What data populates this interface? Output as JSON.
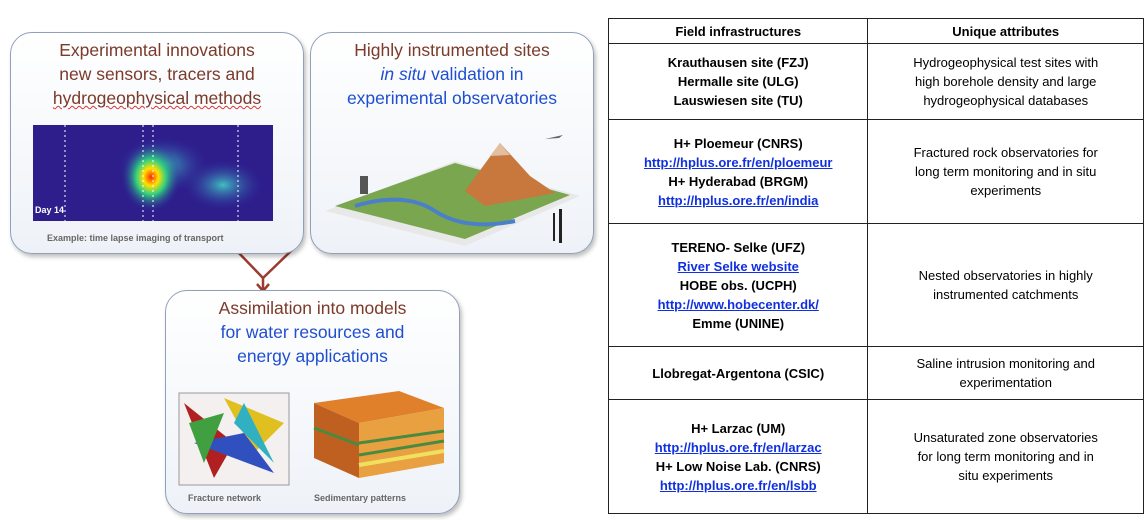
{
  "diagram": {
    "boxes": [
      {
        "lines": [
          "Experimental innovations",
          "new sensors, tracers and",
          "hydrogeophysical methods"
        ],
        "image_labels": [
          "Day 14",
          "Example: time lapse imaging of transport"
        ]
      },
      {
        "lines": [
          "Highly instrumented sites",
          [
            "in situ",
            "validation in"
          ],
          "experimental observatories"
        ]
      },
      {
        "lines": [
          "Assimilation into  models",
          "for water resources and",
          "energy applications"
        ],
        "image_labels": [
          "Fracture network",
          "Sedimentary patterns"
        ]
      }
    ]
  },
  "table": {
    "header": [
      "Field infrastructures",
      "Unique attributes"
    ],
    "rows": [
      {
        "sites": [
          {
            "text": "Krauthausen site (FZJ)"
          },
          {
            "text": "Hermalle site (ULG)"
          },
          {
            "text": "Lauswiesen site (TU)"
          }
        ],
        "attributes": [
          "Hydrogeophysical test sites with",
          "high borehole density and large",
          "hydrogeophysical databases"
        ]
      },
      {
        "sites": [
          {
            "text": "H+ Ploemeur (CNRS)"
          },
          {
            "text": "http://hplus.ore.fr/en/ploemeur",
            "link": true
          },
          {
            "text": "H+ Hyderabad (BRGM)"
          },
          {
            "text": "http://hplus.ore.fr/en/india",
            "link": true
          }
        ],
        "attributes": [
          "Fractured rock observatories for",
          "long term monitoring and in situ",
          "experiments"
        ]
      },
      {
        "sites": [
          {
            "text": "TERENO- Selke (UFZ)"
          },
          {
            "text": "River Selke website",
            "link": true
          },
          {
            "text": "HOBE obs. (UCPH)"
          },
          {
            "text": "http://www.hobecenter.dk/",
            "link": true
          },
          {
            "text": "Emme (UNINE)"
          }
        ],
        "attributes": [
          "Nested observatories in highly",
          "instrumented catchments"
        ]
      },
      {
        "sites": [
          {
            "text": "Llobregat-Argentona (CSIC)"
          }
        ],
        "attributes": [
          "Saline intrusion monitoring and",
          "experimentation"
        ]
      },
      {
        "sites": [
          {
            "text": "H+ Larzac (UM)"
          },
          {
            "text": "http://hplus.ore.fr/en/larzac",
            "link": true
          },
          {
            "text": "H+ Low Noise Lab. (CNRS)"
          },
          {
            "text": "http://hplus.ore.fr/en/lsbb",
            "link": true
          }
        ],
        "attributes": [
          "Unsaturated zone observatories",
          "for long term monitoring and in",
          "situ experiments"
        ]
      }
    ]
  }
}
